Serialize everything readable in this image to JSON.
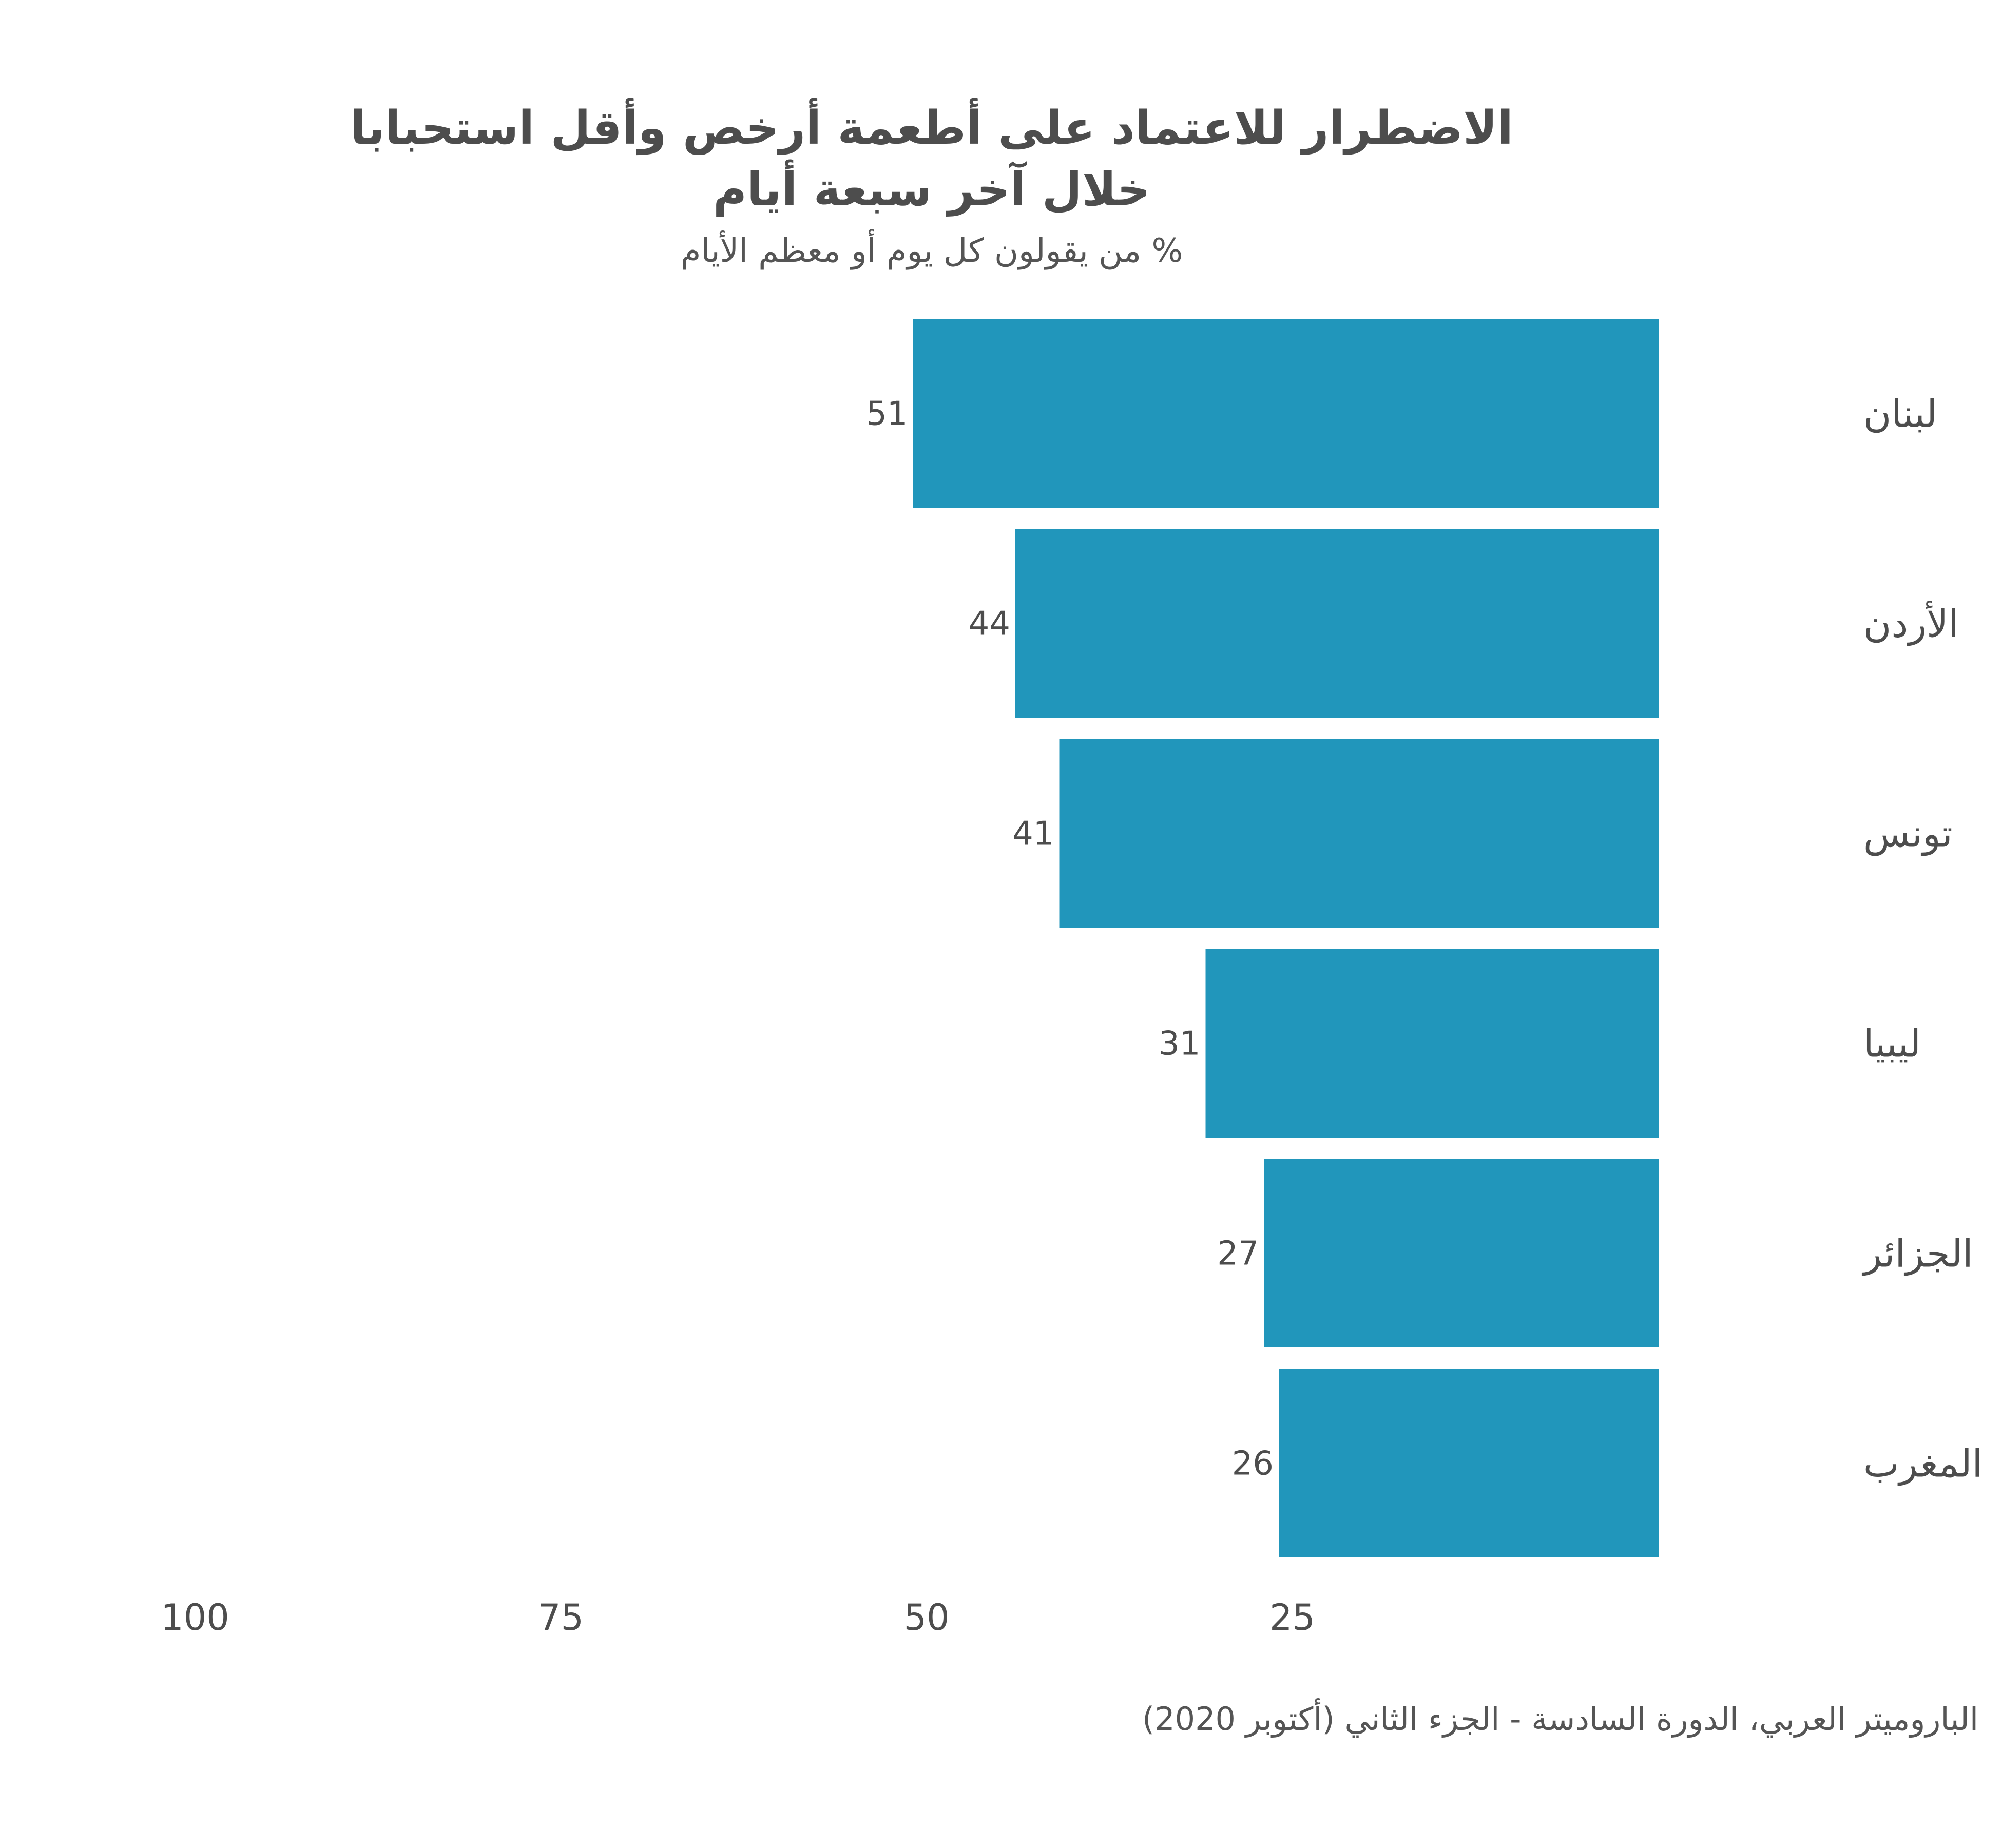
{
  "chart_data": {
    "type": "bar",
    "orientation": "horizontal",
    "direction": "rtl",
    "title_lines": [
      "الاضطرار للاعتماد على أطعمة أرخص وأقل استحبابا",
      "خلال آخر سبعة أيام"
    ],
    "subtitle": "% من يقولون كل يوم أو معظم الأيام",
    "categories": [
      "لبنان",
      "الأردن",
      "تونس",
      "ليبيا",
      "الجزائر",
      "المغرب"
    ],
    "values": [
      51,
      44,
      41,
      31,
      27,
      26
    ],
    "value_labels": [
      "51",
      "44",
      "41",
      "31",
      "27",
      "26"
    ],
    "xlim": [
      0,
      100
    ],
    "x_ticks": [
      100,
      75,
      50,
      25
    ],
    "x_tick_labels": [
      "100",
      "75",
      "50",
      "25"
    ],
    "grid": false,
    "bar_color": "#2196bb",
    "source": "الباروميتر العربي، الدورة السادسة - الجزء الثاني (أكتوبر 2020)"
  }
}
